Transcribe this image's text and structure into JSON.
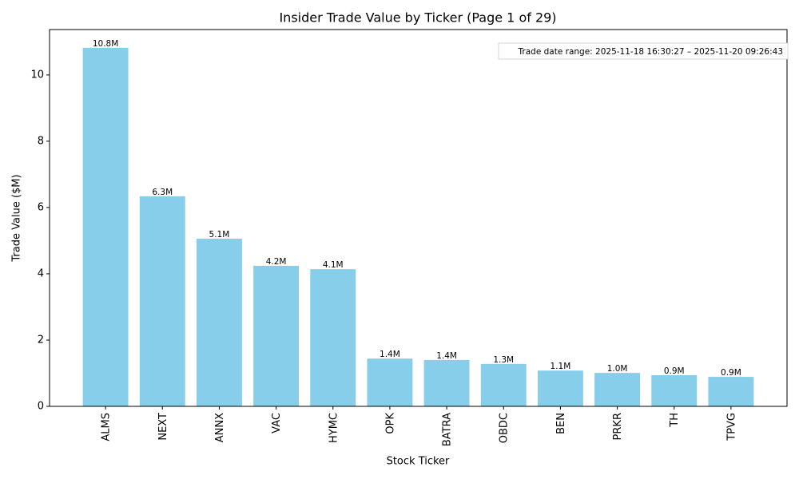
{
  "chart_data": {
    "type": "bar",
    "title": "Insider Trade Value by Ticker (Page 1 of 29)",
    "xlabel": "Stock Ticker",
    "ylabel": "Trade Value ($M)",
    "annotation": "Trade date range: 2025-11-18 16:30:27 – 2025-11-20 09:26:43",
    "categories": [
      "ALMS",
      "NEXT",
      "ANNX",
      "VAC",
      "HYMC",
      "OPK",
      "BATRA",
      "OBDC",
      "BEN",
      "PRKR",
      "TH",
      "TPVG"
    ],
    "values": [
      10.82,
      6.34,
      5.06,
      4.24,
      4.14,
      1.44,
      1.4,
      1.28,
      1.08,
      1.01,
      0.94,
      0.89
    ],
    "value_labels": [
      "10.8M",
      "6.3M",
      "5.1M",
      "4.2M",
      "4.1M",
      "1.4M",
      "1.4M",
      "1.3M",
      "1.1M",
      "1.0M",
      "0.9M",
      "0.9M"
    ],
    "color": "#87ceeb",
    "ylim": [
      0,
      11.37
    ],
    "yticks": [
      0,
      2,
      4,
      6,
      8,
      10
    ],
    "grid": false
  }
}
